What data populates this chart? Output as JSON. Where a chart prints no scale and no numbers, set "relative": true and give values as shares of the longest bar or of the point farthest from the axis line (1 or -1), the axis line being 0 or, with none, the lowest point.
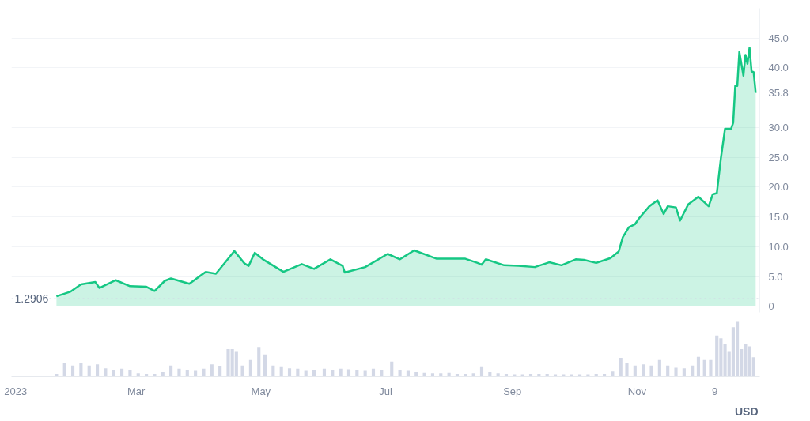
{
  "chart_data": [
    {
      "type": "area",
      "color": "#16c784",
      "x": [
        "2023-01-21",
        "2023-01-28",
        "2023-02-02",
        "2023-02-09",
        "2023-02-11",
        "2023-02-19",
        "2023-02-26",
        "2023-03-06",
        "2023-03-10",
        "2023-03-15",
        "2023-03-18",
        "2023-03-27",
        "2023-04-04",
        "2023-04-09",
        "2023-04-15",
        "2023-04-18",
        "2023-04-23",
        "2023-04-25",
        "2023-04-28",
        "2023-05-02",
        "2023-05-12",
        "2023-05-21",
        "2023-05-27",
        "2023-06-04",
        "2023-06-10",
        "2023-06-11",
        "2023-06-21",
        "2023-07-02",
        "2023-07-08",
        "2023-07-15",
        "2023-07-26",
        "2023-08-09",
        "2023-08-15",
        "2023-08-17",
        "2023-08-19",
        "2023-08-28",
        "2023-09-04",
        "2023-09-12",
        "2023-09-19",
        "2023-09-25",
        "2023-10-02",
        "2023-10-06",
        "2023-10-12",
        "2023-10-19",
        "2023-10-23",
        "2023-10-25",
        "2023-10-28",
        "2023-10-31",
        "2023-11-02",
        "2023-11-07",
        "2023-11-11",
        "2023-11-14",
        "2023-11-16",
        "2023-11-20",
        "2023-11-22",
        "2023-11-26",
        "2023-12-01",
        "2023-12-06",
        "2023-12-08",
        "2023-12-10",
        "2023-12-12",
        "2023-12-14",
        "2023-12-17",
        "2023-12-18",
        "2023-12-19",
        "2023-12-20",
        "2023-12-21",
        "2023-12-23",
        "2023-12-24",
        "2023-12-25",
        "2023-12-26",
        "2023-12-27",
        "2023-12-28",
        "2023-12-29"
      ],
      "values": [
        1.7,
        2.5,
        3.7,
        4.1,
        3.1,
        4.4,
        3.4,
        3.3,
        2.6,
        4.3,
        4.7,
        3.8,
        5.8,
        5.5,
        8.0,
        9.3,
        7.2,
        6.8,
        9.0,
        7.9,
        5.8,
        7.1,
        6.3,
        7.9,
        6.8,
        5.7,
        6.6,
        8.8,
        7.9,
        9.4,
        8.0,
        8.0,
        7.3,
        7.0,
        7.9,
        6.9,
        6.8,
        6.6,
        7.4,
        6.9,
        7.9,
        7.8,
        7.3,
        8.1,
        9.2,
        11.6,
        13.3,
        13.8,
        14.8,
        16.8,
        17.8,
        15.5,
        16.8,
        16.6,
        14.4,
        17.1,
        18.4,
        16.8,
        18.8,
        19.0,
        24.9,
        29.8,
        29.8,
        30.8,
        37.0,
        37.0,
        42.7,
        38.7,
        42.2,
        40.7,
        43.4,
        39.4,
        39.3,
        35.8
      ],
      "xlim": [
        "2022-12-30",
        "2023-12-31"
      ],
      "ylim": [
        -1,
        50
      ],
      "yticks": [
        0,
        {
          "value": 5,
          "label": "5.0"
        },
        {
          "value": 10,
          "label": "10.0"
        },
        {
          "value": 15,
          "label": "15.0"
        },
        {
          "value": 20,
          "label": "20.0"
        },
        {
          "value": 25,
          "label": "25.0"
        },
        {
          "value": 30,
          "label": "30.0"
        },
        {
          "value": 35.8,
          "label": "35.8"
        },
        {
          "value": 40,
          "label": "40.0"
        },
        {
          "value": 45,
          "label": "45.0"
        }
      ],
      "tick_labels": "y",
      "grid": "y",
      "ref_lines": [
        {
          "axis": "y",
          "value": 1.2906,
          "label": "1.2906",
          "line_style": "dotted",
          "color": "#cfd6e4"
        }
      ]
    },
    {
      "type": "bar",
      "relative": true,
      "color": "#d3d8e6",
      "x": [
        "2023-01-21",
        "2023-01-25",
        "2023-01-29",
        "2023-02-02",
        "2023-02-06",
        "2023-02-10",
        "2023-02-14",
        "2023-02-18",
        "2023-02-22",
        "2023-02-26",
        "2023-03-02",
        "2023-03-06",
        "2023-03-10",
        "2023-03-14",
        "2023-03-18",
        "2023-03-22",
        "2023-03-26",
        "2023-03-30",
        "2023-04-03",
        "2023-04-07",
        "2023-04-11",
        "2023-04-15",
        "2023-04-17",
        "2023-04-19",
        "2023-04-22",
        "2023-04-26",
        "2023-04-30",
        "2023-05-03",
        "2023-05-07",
        "2023-05-11",
        "2023-05-15",
        "2023-05-19",
        "2023-05-23",
        "2023-05-27",
        "2023-06-01",
        "2023-06-05",
        "2023-06-09",
        "2023-06-13",
        "2023-06-17",
        "2023-06-21",
        "2023-06-25",
        "2023-06-29",
        "2023-07-04",
        "2023-07-08",
        "2023-07-12",
        "2023-07-16",
        "2023-07-20",
        "2023-07-24",
        "2023-07-28",
        "2023-08-01",
        "2023-08-05",
        "2023-08-09",
        "2023-08-13",
        "2023-08-17",
        "2023-08-21",
        "2023-08-25",
        "2023-08-29",
        "2023-09-02",
        "2023-09-06",
        "2023-09-10",
        "2023-09-14",
        "2023-09-18",
        "2023-09-22",
        "2023-09-26",
        "2023-09-30",
        "2023-10-04",
        "2023-10-08",
        "2023-10-12",
        "2023-10-16",
        "2023-10-20",
        "2023-10-24",
        "2023-10-27",
        "2023-10-31",
        "2023-11-04",
        "2023-11-08",
        "2023-11-12",
        "2023-11-16",
        "2023-11-20",
        "2023-11-24",
        "2023-11-28",
        "2023-12-01",
        "2023-12-04",
        "2023-12-07",
        "2023-12-10",
        "2023-12-12",
        "2023-12-14",
        "2023-12-16",
        "2023-12-18",
        "2023-12-20",
        "2023-12-22",
        "2023-12-24",
        "2023-12-26",
        "2023-12-28"
      ],
      "values": [
        0.05,
        0.25,
        0.2,
        0.25,
        0.2,
        0.22,
        0.15,
        0.12,
        0.14,
        0.12,
        0.06,
        0.04,
        0.05,
        0.08,
        0.2,
        0.14,
        0.12,
        0.1,
        0.14,
        0.22,
        0.18,
        0.5,
        0.5,
        0.45,
        0.2,
        0.3,
        0.54,
        0.4,
        0.2,
        0.17,
        0.15,
        0.14,
        0.1,
        0.12,
        0.14,
        0.12,
        0.14,
        0.13,
        0.12,
        0.1,
        0.14,
        0.12,
        0.27,
        0.12,
        0.1,
        0.08,
        0.07,
        0.06,
        0.06,
        0.07,
        0.05,
        0.05,
        0.06,
        0.17,
        0.08,
        0.06,
        0.05,
        0.03,
        0.03,
        0.04,
        0.05,
        0.04,
        0.03,
        0.03,
        0.03,
        0.03,
        0.03,
        0.04,
        0.05,
        0.09,
        0.34,
        0.25,
        0.2,
        0.22,
        0.2,
        0.3,
        0.2,
        0.16,
        0.15,
        0.2,
        0.36,
        0.3,
        0.3,
        0.75,
        0.7,
        0.6,
        0.45,
        0.9,
        1,
        0.5,
        0.6,
        0.55,
        0.35
      ],
      "xlim": [
        "2022-12-30",
        "2023-12-31"
      ],
      "xticks": [
        {
          "value": "2023-01-01",
          "label": "2023"
        },
        {
          "value": "2023-03-01",
          "label": "Mar"
        },
        {
          "value": "2023-05-01",
          "label": "May"
        },
        {
          "value": "2023-07-01",
          "label": "Jul"
        },
        {
          "value": "2023-09-01",
          "label": "Sep"
        },
        {
          "value": "2023-11-01",
          "label": "Nov"
        },
        {
          "value": "2023-12-09",
          "label": "9"
        }
      ],
      "tick_labels": "x",
      "annotations": [
        "USD"
      ]
    }
  ]
}
